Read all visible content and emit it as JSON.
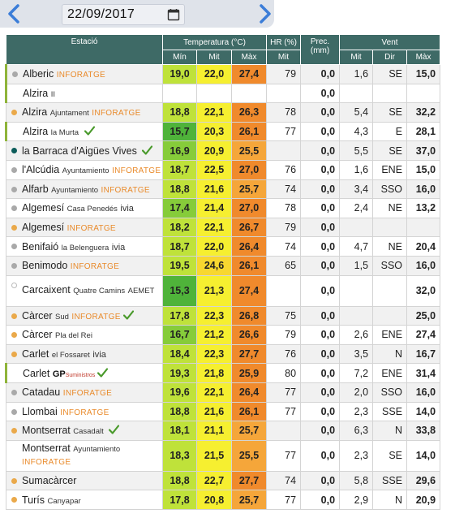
{
  "date": "22/09/2017",
  "header": {
    "station": "Estació",
    "temperature": "Temperatura (°C)",
    "hr": "HR (%)",
    "prec": "Prec. (mm)",
    "wind": "Vent",
    "min": "Mín",
    "mid": "Mit",
    "max": "Màx",
    "hr_mid": "Mit",
    "w_mid": "Mit",
    "w_dir": "Dir",
    "w_max": "Màx"
  },
  "colors": {
    "header_bg": "#3e6a66",
    "tmin_light": "#bfe23a",
    "tmin_mid": "#86cc3a",
    "tmin_dark": "#4fb33a",
    "tmid_yellow": "#f6ef30",
    "tmid_yellow_orange": "#f8d730",
    "tmax_orange": "#f08a2c",
    "tmax_light_orange": "#f5a63a"
  },
  "rows": [
    {
      "name": "Alberic",
      "sub": "",
      "brand": "INFORATGE",
      "brand_type": "inforatge",
      "dot": "gray",
      "bar": true,
      "check": false,
      "tmin": "19,0",
      "tmid": "22,0",
      "tmax": "27,4",
      "hr": "79",
      "prec": "0,0",
      "wmid": "1,6",
      "wdir": "SE",
      "wmax": "15,0",
      "cmin": "tmin_light",
      "cmid": "tmid_yellow",
      "cmax": "tmax_orange"
    },
    {
      "name": "Alzira",
      "sub": "II",
      "brand": "",
      "brand_type": "",
      "dot": "none",
      "bar": true,
      "check": false,
      "tmin": "",
      "tmid": "",
      "tmax": "",
      "hr": "",
      "prec": "0,0",
      "wmid": "",
      "wdir": "",
      "wmax": "",
      "cmin": "",
      "cmid": "",
      "cmax": ""
    },
    {
      "name": "Alzira",
      "sub": "Ajuntament",
      "brand": "INFORATGE",
      "brand_type": "inforatge",
      "dot": "orange",
      "bar": false,
      "check": false,
      "tmin": "18,8",
      "tmid": "22,1",
      "tmax": "26,3",
      "hr": "78",
      "prec": "0,0",
      "wmid": "5,4",
      "wdir": "SE",
      "wmax": "32,2",
      "cmin": "tmin_light",
      "cmid": "tmid_yellow",
      "cmax": "tmax_orange"
    },
    {
      "name": "Alzira",
      "sub": "la Murta",
      "brand": "",
      "brand_type": "",
      "dot": "none",
      "bar": true,
      "check": true,
      "tmin": "15,7",
      "tmid": "20,3",
      "tmax": "26,1",
      "hr": "77",
      "prec": "0,0",
      "wmid": "4,3",
      "wdir": "E",
      "wmax": "28,1",
      "cmin": "tmin_dark",
      "cmid": "tmid_yellow",
      "cmax": "tmax_orange"
    },
    {
      "name": "la Barraca d'Aigües Vives",
      "sub": "",
      "brand": "",
      "brand_type": "",
      "dot": "teal",
      "bar": false,
      "check": true,
      "tmin": "16,9",
      "tmid": "20,9",
      "tmax": "25,5",
      "hr": "",
      "prec": "0,0",
      "wmid": "5,5",
      "wdir": "SE",
      "wmax": "37,0",
      "cmin": "tmin_mid",
      "cmid": "tmid_yellow",
      "cmax": "tmax_light_orange"
    },
    {
      "name": "l'Alcúdia",
      "sub": "Ayuntamiento",
      "brand": "INFORATGE",
      "brand_type": "inforatge",
      "dot": "gray",
      "bar": false,
      "check": false,
      "tmin": "18,7",
      "tmid": "22,5",
      "tmax": "27,0",
      "hr": "76",
      "prec": "0,0",
      "wmid": "1,6",
      "wdir": "ENE",
      "wmax": "15,0",
      "cmin": "tmin_light",
      "cmid": "tmid_yellow",
      "cmax": "tmax_orange"
    },
    {
      "name": "Alfarb",
      "sub": "Ayuntamiento",
      "brand": "INFORATGE",
      "brand_type": "inforatge",
      "dot": "gray",
      "bar": false,
      "check": false,
      "tmin": "18,8",
      "tmid": "21,6",
      "tmax": "25,7",
      "hr": "74",
      "prec": "0,0",
      "wmid": "3,4",
      "wdir": "SSO",
      "wmax": "16,0",
      "cmin": "tmin_light",
      "cmid": "tmid_yellow",
      "cmax": "tmax_light_orange"
    },
    {
      "name": "Algemesí",
      "sub": "Casa Penedés",
      "brand": "ivia",
      "brand_type": "ivia",
      "dot": "gray",
      "bar": false,
      "check": false,
      "tmin": "17,4",
      "tmid": "21,4",
      "tmax": "27,0",
      "hr": "78",
      "prec": "0,0",
      "wmid": "2,4",
      "wdir": "NE",
      "wmax": "13,2",
      "cmin": "tmin_mid",
      "cmid": "tmid_yellow",
      "cmax": "tmax_orange"
    },
    {
      "name": "Algemesí",
      "sub": "",
      "brand": "INFORATGE",
      "brand_type": "inforatge",
      "dot": "orange",
      "bar": false,
      "check": false,
      "tmin": "18,2",
      "tmid": "22,1",
      "tmax": "26,7",
      "hr": "79",
      "prec": "0,0",
      "wmid": "",
      "wdir": "",
      "wmax": "",
      "cmin": "tmin_light",
      "cmid": "tmid_yellow",
      "cmax": "tmax_orange"
    },
    {
      "name": "Benifaió",
      "sub": "la Belenguera",
      "brand": "ivia",
      "brand_type": "ivia",
      "dot": "gray",
      "bar": false,
      "check": false,
      "tmin": "18,7",
      "tmid": "22,0",
      "tmax": "26,4",
      "hr": "74",
      "prec": "0,0",
      "wmid": "4,7",
      "wdir": "NE",
      "wmax": "20,4",
      "cmin": "tmin_light",
      "cmid": "tmid_yellow",
      "cmax": "tmax_orange"
    },
    {
      "name": "Benimodo",
      "sub": "",
      "brand": "INFORATGE",
      "brand_type": "inforatge",
      "dot": "gray",
      "bar": false,
      "check": false,
      "tmin": "19,5",
      "tmid": "24,6",
      "tmax": "26,1",
      "hr": "65",
      "prec": "0,0",
      "wmid": "1,5",
      "wdir": "SSO",
      "wmax": "16,0",
      "cmin": "tmin_light",
      "cmid": "tmid_yellow_orange",
      "cmax": "tmax_orange"
    },
    {
      "name": "Carcaixent",
      "sub": "Quatre Camins",
      "brand": "AEMET",
      "brand_type": "aemet",
      "dot": "open",
      "bar": false,
      "check": false,
      "tall": true,
      "tmin": "15,3",
      "tmid": "21,3",
      "tmax": "27,4",
      "hr": "",
      "prec": "0,0",
      "wmid": "",
      "wdir": "",
      "wmax": "32,0",
      "cmin": "tmin_dark",
      "cmid": "tmid_yellow",
      "cmax": "tmax_orange"
    },
    {
      "name": "Càrcer",
      "sub": "Sud",
      "brand": "INFORATGE",
      "brand_type": "inforatge",
      "dot": "orange",
      "bar": false,
      "check": true,
      "tmin": "17,8",
      "tmid": "22,3",
      "tmax": "26,8",
      "hr": "75",
      "prec": "0,0",
      "wmid": "",
      "wdir": "",
      "wmax": "25,0",
      "cmin": "tmin_light",
      "cmid": "tmid_yellow",
      "cmax": "tmax_orange"
    },
    {
      "name": "Càrcer",
      "sub": "Pla del Rei",
      "brand": "",
      "brand_type": "",
      "dot": "orange",
      "bar": false,
      "check": false,
      "tmin": "16,7",
      "tmid": "21,2",
      "tmax": "26,6",
      "hr": "79",
      "prec": "0,0",
      "wmid": "2,6",
      "wdir": "ENE",
      "wmax": "27,4",
      "cmin": "tmin_mid",
      "cmid": "tmid_yellow",
      "cmax": "tmax_orange"
    },
    {
      "name": "Carlet",
      "sub": "el Fossaret",
      "brand": "ivia",
      "brand_type": "ivia",
      "dot": "orange",
      "bar": false,
      "check": false,
      "tmin": "18,4",
      "tmid": "22,3",
      "tmax": "27,7",
      "hr": "76",
      "prec": "0,0",
      "wmid": "3,5",
      "wdir": "N",
      "wmax": "16,7",
      "cmin": "tmin_light",
      "cmid": "tmid_yellow",
      "cmax": "tmax_orange"
    },
    {
      "name": "Carlet",
      "sub": "",
      "brand": "GP",
      "brand_sub": "Suministros",
      "brand_type": "gp",
      "dot": "none",
      "bar": true,
      "check": true,
      "tmin": "19,3",
      "tmid": "21,8",
      "tmax": "25,9",
      "hr": "80",
      "prec": "0,0",
      "wmid": "7,2",
      "wdir": "ENE",
      "wmax": "31,4",
      "cmin": "tmin_light",
      "cmid": "tmid_yellow",
      "cmax": "tmax_orange"
    },
    {
      "name": "Catadau",
      "sub": "",
      "brand": "INFORATGE",
      "brand_type": "inforatge",
      "dot": "gray",
      "bar": false,
      "check": false,
      "tmin": "19,6",
      "tmid": "22,1",
      "tmax": "26,4",
      "hr": "77",
      "prec": "0,0",
      "wmid": "2,0",
      "wdir": "SSO",
      "wmax": "16,0",
      "cmin": "tmin_light",
      "cmid": "tmid_yellow",
      "cmax": "tmax_orange"
    },
    {
      "name": "Llombai",
      "sub": "",
      "brand": "INFORATGE",
      "brand_type": "inforatge",
      "dot": "gray",
      "bar": false,
      "check": false,
      "tmin": "18,8",
      "tmid": "21,6",
      "tmax": "26,1",
      "hr": "77",
      "prec": "0,0",
      "wmid": "2,3",
      "wdir": "SSE",
      "wmax": "14,0",
      "cmin": "tmin_light",
      "cmid": "tmid_yellow",
      "cmax": "tmax_orange"
    },
    {
      "name": "Montserrat",
      "sub": "Casadalt",
      "brand": "",
      "brand_type": "",
      "dot": "orange",
      "bar": false,
      "check": true,
      "tmin": "18,1",
      "tmid": "21,1",
      "tmax": "25,7",
      "hr": "",
      "prec": "0,0",
      "wmid": "6,3",
      "wdir": "N",
      "wmax": "33,8",
      "cmin": "tmin_light",
      "cmid": "tmid_yellow",
      "cmax": "tmax_light_orange"
    },
    {
      "name": "Montserrat",
      "sub": "Ayuntamiento",
      "brand": "INFORATGE",
      "brand_type": "inforatge",
      "dot": "none",
      "bar": false,
      "check": false,
      "tall": true,
      "tmin": "18,3",
      "tmid": "21,5",
      "tmax": "25,5",
      "hr": "77",
      "prec": "0,0",
      "wmid": "2,3",
      "wdir": "SE",
      "wmax": "14,0",
      "cmin": "tmin_light",
      "cmid": "tmid_yellow",
      "cmax": "tmax_light_orange"
    },
    {
      "name": "Sumacàrcer",
      "sub": "",
      "brand": "",
      "brand_type": "",
      "dot": "orange",
      "bar": false,
      "check": false,
      "tmin": "18,8",
      "tmid": "22,7",
      "tmax": "27,7",
      "hr": "74",
      "prec": "0,0",
      "wmid": "5,8",
      "wdir": "SSE",
      "wmax": "29,6",
      "cmin": "tmin_light",
      "cmid": "tmid_yellow",
      "cmax": "tmax_orange"
    },
    {
      "name": "Turís",
      "sub": "Canyapar",
      "brand": "",
      "brand_type": "",
      "dot": "orange",
      "bar": false,
      "check": false,
      "tmin": "17,8",
      "tmid": "20,8",
      "tmax": "25,7",
      "hr": "77",
      "prec": "0,0",
      "wmid": "2,9",
      "wdir": "N",
      "wmax": "20,9",
      "cmin": "tmin_light",
      "cmid": "tmid_yellow",
      "cmax": "tmax_light_orange"
    }
  ]
}
